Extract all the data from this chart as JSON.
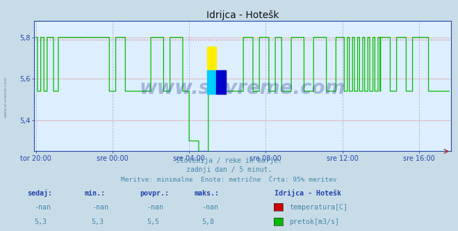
{
  "title": "Idrijca - Hotešk",
  "bg_color": "#c8dce8",
  "plot_bg_color": "#ddeeff",
  "x_tick_labels": [
    "tor 20:00",
    "sre 00:00",
    "sre 04:00",
    "sre 08:00",
    "sre 12:00",
    "sre 16:00"
  ],
  "x_tick_positions": [
    0,
    240,
    480,
    720,
    960,
    1200
  ],
  "y_min": 5.25,
  "y_max": 5.88,
  "y_ticks": [
    5.4,
    5.6,
    5.8
  ],
  "y_tick_labels": [
    "5,4",
    "5,6",
    "5,8"
  ],
  "flow_color": "#00bb00",
  "temp_color": "#cc0000",
  "dotted_line_color": "#cc6666",
  "dotted_line_y": 5.79,
  "grid_color_v": "#aaaacc",
  "grid_color_h": "#ddaaaa",
  "axis_color": "#2244aa",
  "subtitle1": "Slovenija / reke in morje.",
  "subtitle2": "zadnji dan / 5 minut.",
  "subtitle3": "Meritve: minimalne  Enote: metrične  Črta: 95% meritev",
  "subtitle_color": "#4488aa",
  "table_header_color": "#2244aa",
  "table_cols": [
    "sedaj:",
    "min.:",
    "povpr.:",
    "maks.:"
  ],
  "table_row1": [
    "-nan",
    "-nan",
    "-nan",
    "-nan"
  ],
  "table_row2": [
    "5,3",
    "5,3",
    "5,5",
    "5,8"
  ],
  "legend_title": "Idrijca - Hotešk",
  "legend_items": [
    "temperatura[C]",
    "pretok[m3/s]"
  ],
  "legend_colors": [
    "#cc0000",
    "#00bb00"
  ],
  "watermark": "www.si-vreme.com",
  "watermark_color": "#1a3a8a",
  "left_label": "www.si-vreme.com",
  "total_points": 1296,
  "n_segments": 1296
}
